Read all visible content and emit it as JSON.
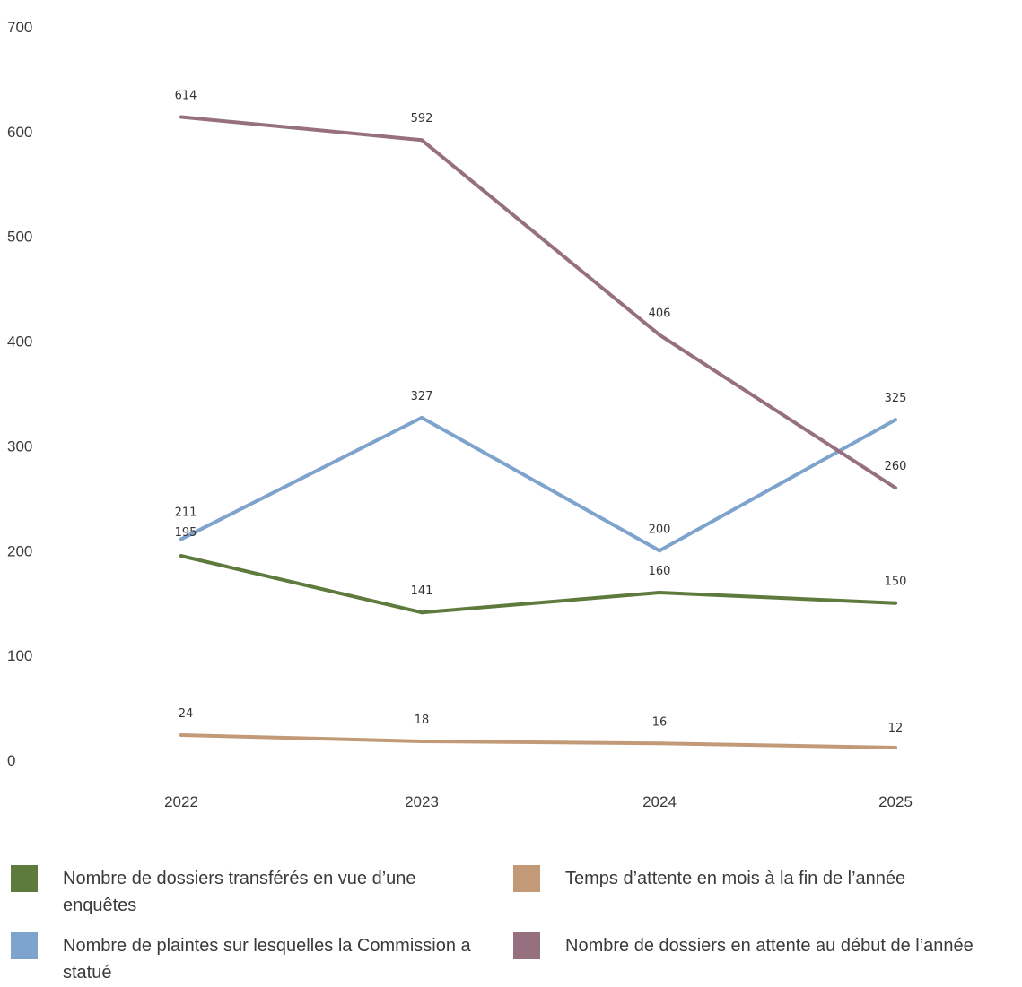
{
  "chart_data": {
    "type": "line",
    "x": [
      "2022",
      "2023",
      "2024",
      "2025"
    ],
    "ylim": [
      0,
      700
    ],
    "yticks": [
      0,
      100,
      200,
      300,
      400,
      500,
      600,
      700
    ],
    "grid": false,
    "legend_position": "bottom",
    "series": [
      {
        "name": "Nombre de dossiers transférés en vue d’une enquêtes",
        "color": "#5e7a3c",
        "values": [
          195,
          141,
          160,
          150
        ]
      },
      {
        "name": "Temps d’attente en mois à la fin de l’année",
        "color": "#c29a78",
        "values": [
          24,
          18,
          16,
          12
        ]
      },
      {
        "name": "Nombre de plaintes sur lesquelles la Commission a statué",
        "color": "#7ea3cc",
        "values": [
          211,
          327,
          200,
          325
        ]
      },
      {
        "name": "Nombre de dossiers en attente au début de l’année",
        "color": "#97707f",
        "values": [
          614,
          592,
          406,
          260
        ]
      }
    ],
    "data_labels": [
      [
        "195",
        "141",
        "160",
        "150"
      ],
      [
        "24",
        "18",
        "16",
        "12"
      ],
      [
        "211",
        "327",
        "200",
        "325"
      ],
      [
        "614",
        "592",
        "406",
        "260"
      ]
    ]
  },
  "legend": {
    "items": [
      {
        "label": "Nombre de dossiers transférés en vue d’une enquêtes",
        "color": "#5e7a3c"
      },
      {
        "label": "Temps d’attente en mois à la fin de l’année",
        "color": "#c29a78"
      },
      {
        "label": "Nombre de plaintes sur lesquelles la Commission a statué",
        "color": "#7ea3cc"
      },
      {
        "label": "Nombre de dossiers en attente au début de l’année",
        "color": "#97707f"
      }
    ]
  }
}
